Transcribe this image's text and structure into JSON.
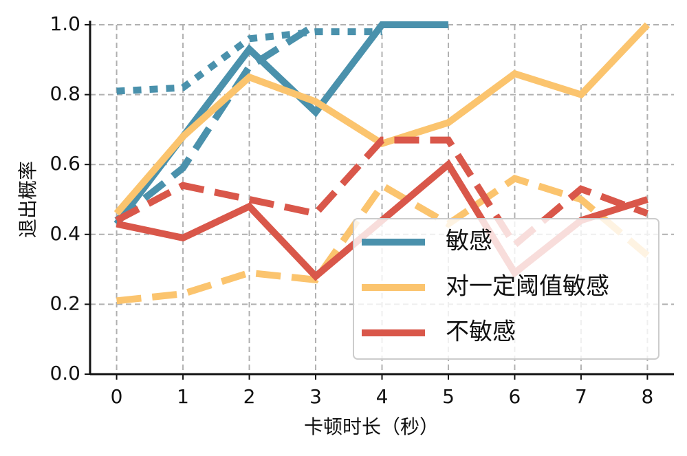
{
  "chart_data": {
    "type": "line",
    "xlabel": "卡顿时长（秒）",
    "ylabel": "退出概率",
    "x": [
      0,
      1,
      2,
      3,
      4,
      5,
      6,
      7,
      8
    ],
    "xlim": [
      -0.4,
      8.4
    ],
    "ylim": [
      0,
      1
    ],
    "xticks": [
      0,
      1,
      2,
      3,
      4,
      5,
      6,
      7,
      8
    ],
    "yticks": [
      {
        "value": 0,
        "label": "0.0"
      },
      0.2,
      0.4,
      0.6,
      0.8,
      {
        "value": 1,
        "label": "1.0"
      }
    ],
    "grid": true,
    "legend": "lower right",
    "series": [
      {
        "name": "敏感",
        "color": "#4a91ac",
        "dash": "solid",
        "values": [
          0.43,
          0.68,
          0.93,
          0.75,
          1.0,
          1.0,
          null,
          null,
          null
        ]
      },
      {
        "color": "#4a91ac",
        "dash": "dashed",
        "values": [
          0.44,
          0.59,
          0.88,
          1.0,
          null,
          null,
          null,
          null,
          null
        ]
      },
      {
        "color": "#4a91ac",
        "dash": "dotted",
        "values": [
          0.81,
          0.82,
          0.96,
          0.98,
          0.98,
          null,
          null,
          null,
          null
        ]
      },
      {
        "name": "对一定阈值敏感",
        "color": "#fbc46e",
        "dash": "solid",
        "values": [
          0.46,
          0.68,
          0.85,
          0.78,
          0.66,
          0.72,
          0.86,
          0.8,
          1.0
        ]
      },
      {
        "color": "#fbc46e",
        "dash": "dashed",
        "values": [
          0.21,
          0.23,
          0.29,
          0.27,
          0.54,
          0.43,
          0.56,
          0.5,
          0.34
        ]
      },
      {
        "name": "不敏感",
        "color": "#d9574a",
        "dash": "solid",
        "values": [
          0.43,
          0.39,
          0.48,
          0.28,
          0.44,
          0.6,
          0.29,
          0.44,
          0.5
        ]
      },
      {
        "color": "#d9574a",
        "dash": "dashed",
        "values": [
          0.44,
          0.54,
          0.5,
          0.46,
          0.67,
          0.67,
          0.37,
          0.53,
          0.46
        ]
      }
    ]
  }
}
